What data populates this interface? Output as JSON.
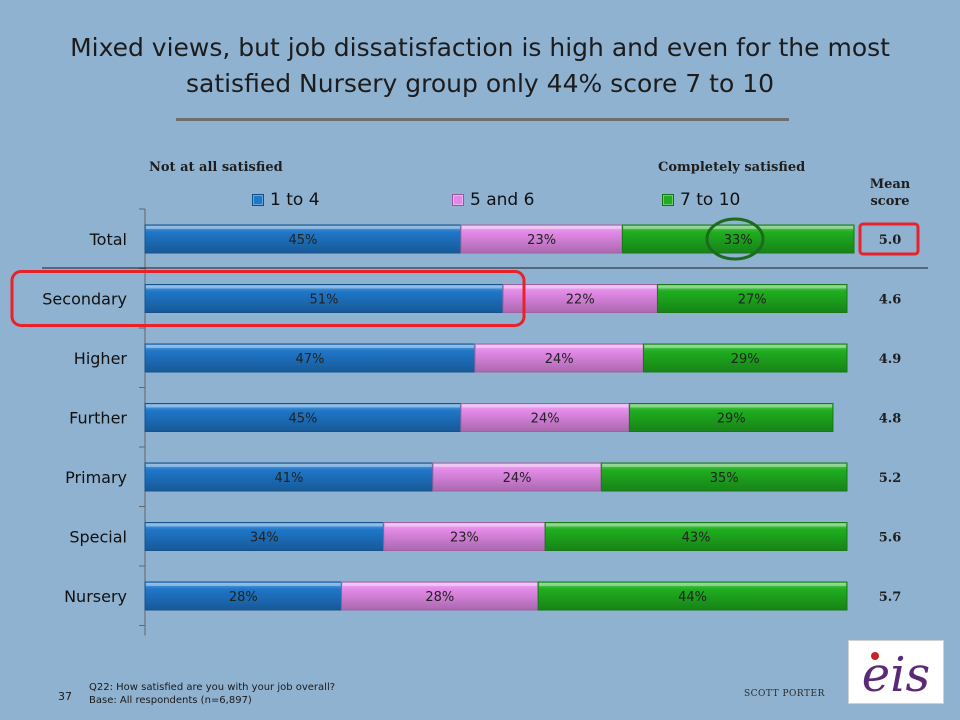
{
  "title": "Mixed views, but job dissatisfaction is high and even for the most satisfied Nursery group only 44% score 7 to 10",
  "headers": {
    "left": "Not at all satisfied",
    "right": "Completely satisfied",
    "mean": "Mean score"
  },
  "legend": [
    {
      "label": "1 to 4",
      "color": "#1f77c9"
    },
    {
      "label": "5 and 6",
      "color": "#e38ae8"
    },
    {
      "label": "7 to 10",
      "color": "#1fae1f"
    }
  ],
  "chart_data": {
    "type": "bar",
    "orientation": "horizontal",
    "stacked": true,
    "categories": [
      "Total",
      "Secondary",
      "Higher",
      "Further",
      "Primary",
      "Special",
      "Nursery"
    ],
    "series": [
      {
        "name": "1 to 4",
        "values": [
          45,
          51,
          47,
          45,
          41,
          34,
          28
        ],
        "labels": [
          "45%",
          "51%",
          "47%",
          "45%",
          "41%",
          "34%",
          "28%"
        ],
        "color": "#1f77c9"
      },
      {
        "name": "5 and 6",
        "values": [
          23,
          22,
          24,
          24,
          24,
          23,
          28
        ],
        "labels": [
          "23%",
          "22%",
          "24%",
          "24%",
          "24%",
          "23%",
          "28%"
        ],
        "color": "#e38ae8"
      },
      {
        "name": "7 to 10",
        "values": [
          33,
          27,
          29,
          29,
          35,
          43,
          44
        ],
        "labels": [
          "33%",
          "27%",
          "29%",
          "29%",
          "35%",
          "43%",
          "44%"
        ],
        "color": "#1fae1f"
      }
    ],
    "mean_scores": [
      "5.0",
      "4.6",
      "4.9",
      "4.8",
      "5.2",
      "5.6",
      "5.7"
    ],
    "xlim": [
      0,
      100
    ],
    "highlight_color": "#e8222a"
  },
  "footer": {
    "question": "Q22: How satisfied are you with your job overall?",
    "base": "Base: All respondents (n=6,897)",
    "page_number": "37",
    "brand": "SCOTT PORTER",
    "logo_text": "eis"
  }
}
